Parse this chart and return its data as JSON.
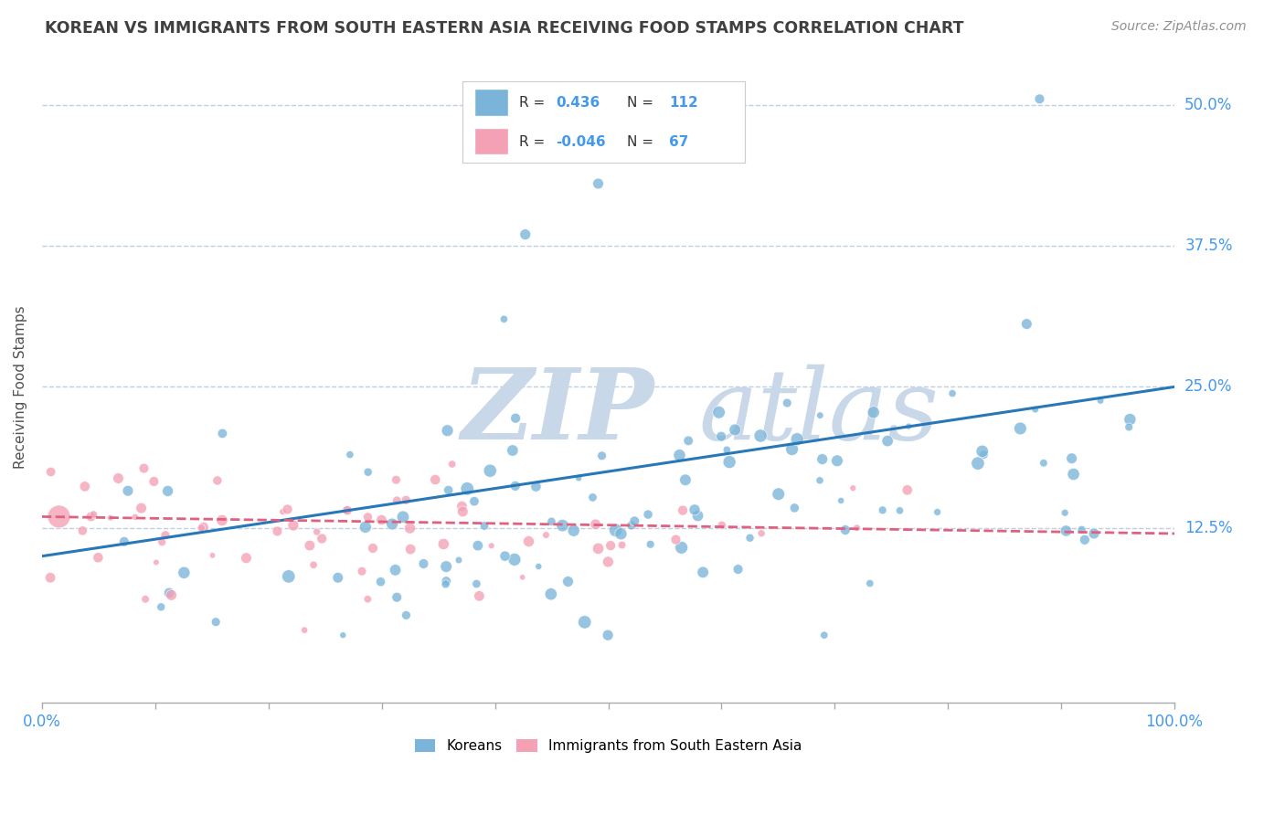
{
  "title": "KOREAN VS IMMIGRANTS FROM SOUTH EASTERN ASIA RECEIVING FOOD STAMPS CORRELATION CHART",
  "source_text": "Source: ZipAtlas.com",
  "ylabel": "Receiving Food Stamps",
  "xlim": [
    0,
    100
  ],
  "ylim": [
    -3,
    53
  ],
  "ytick_vals": [
    12.5,
    25.0,
    37.5,
    50.0
  ],
  "ytick_labels": [
    "12.5%",
    "25.0%",
    "37.5%",
    "50.0%"
  ],
  "xtick_labels": [
    "0.0%",
    "100.0%"
  ],
  "legend_label1": "Koreans",
  "legend_label2": "Immigrants from South Eastern Asia",
  "r1": 0.436,
  "n1": 112,
  "r2": -0.046,
  "n2": 67,
  "blue_color": "#7ab5d9",
  "pink_color": "#f4a0b5",
  "line_blue": "#2878b8",
  "line_pink": "#e06080",
  "watermark_zip": "ZIP",
  "watermark_atlas": "atlas",
  "watermark_color": "#c8d8e8",
  "background_color": "#ffffff",
  "grid_color": "#c0d0e0",
  "title_color": "#404040",
  "source_color": "#909090",
  "tick_label_color": "#4499ee",
  "legend_text_color": "#333333",
  "legend_val_color": "#4499ee"
}
